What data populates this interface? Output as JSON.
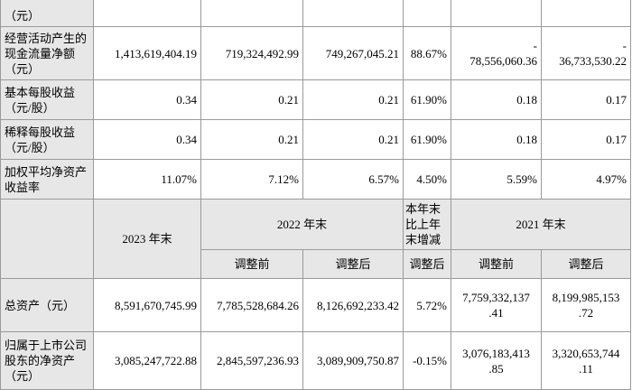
{
  "rows": [
    {
      "label": "（元）",
      "values": [
        "",
        "",
        "",
        "",
        "",
        ""
      ]
    },
    {
      "label": "经营活动产生的现金流量净额（元）",
      "values": [
        "1,413,619,404.19",
        "719,324,492.99",
        "749,267,045.21",
        "88.67%",
        "-\n78,556,060.36",
        "-\n36,733,530.22"
      ]
    },
    {
      "label": "基本每股收益（元/股）",
      "values": [
        "0.34",
        "0.21",
        "0.21",
        "61.90%",
        "0.18",
        "0.17"
      ]
    },
    {
      "label": "稀释每股收益（元/股）",
      "values": [
        "0.34",
        "0.21",
        "0.21",
        "61.90%",
        "0.18",
        "0.17"
      ]
    },
    {
      "label": "加权平均净资产收益率",
      "values": [
        "11.07%",
        "7.12%",
        "6.57%",
        "4.50%",
        "5.59%",
        "4.97%"
      ]
    }
  ],
  "header": {
    "col_2023": "2023 年末",
    "col_2022": "2022 年末",
    "col_change": "本年末比上年末增减",
    "col_2021": "2021 年末",
    "before_adj": "调整前",
    "after_adj": "调整后",
    "after_adj_change": "调整后",
    "before_adj_2021": "调整前",
    "after_adj_2021": "调整后"
  },
  "rows2": [
    {
      "label": "总资产（元）",
      "values": [
        "8,591,670,745.99",
        "7,785,528,684.26",
        "8,126,692,233.42",
        "5.72%",
        "7,759,332,137\n.41",
        "8,199,985,153\n.72"
      ]
    },
    {
      "label": "归属于上市公司股东的净资产（元）",
      "values": [
        "3,085,247,722.88",
        "2,845,597,236.93",
        "3,089,909,750.87",
        "-0.15%",
        "3,076,183,413\n.85",
        "3,320,653,744\n.11"
      ]
    }
  ]
}
